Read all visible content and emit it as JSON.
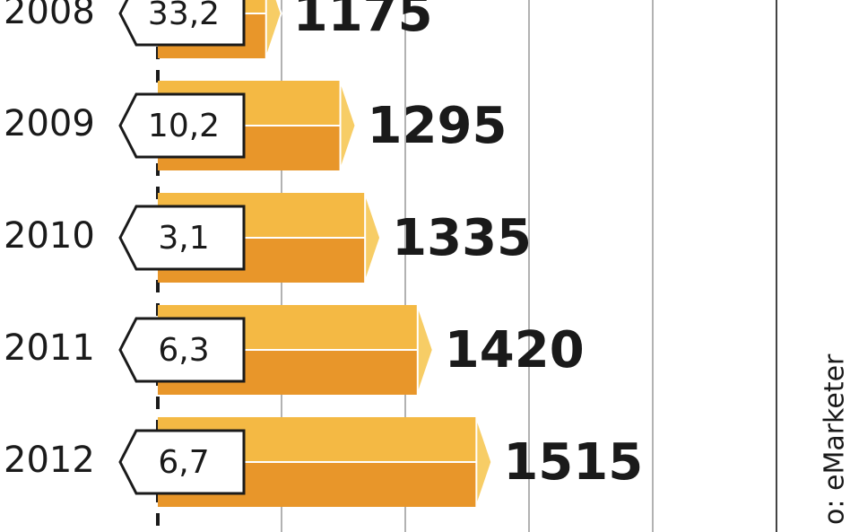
{
  "chart_data": {
    "type": "bar",
    "orientation": "horizontal",
    "categories": [
      "2008",
      "2009",
      "2010",
      "2011",
      "2012"
    ],
    "values": [
      1175,
      1295,
      1335,
      1420,
      1515
    ],
    "growth_labels": [
      "33,2",
      "10,2",
      "3,1",
      "6,3",
      "6,7"
    ],
    "colors": [
      "#f4b944",
      "#e8962a"
    ],
    "xlim": [
      1000,
      2000
    ],
    "xticks": [
      1200,
      1400,
      1600,
      1800
    ],
    "grid": true,
    "source": "o: eMarketer"
  }
}
